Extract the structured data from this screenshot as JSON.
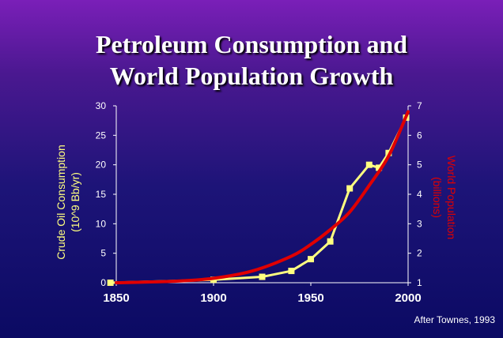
{
  "title_lines": [
    "Petroleum Consumption and",
    "World Population Growth"
  ],
  "credit": "After Townes, 1993",
  "colors": {
    "oil": "#ffff80",
    "population": "#e00000",
    "axis": "#ffffff"
  },
  "chart_data": {
    "type": "line",
    "title": "Petroleum Consumption and World Population Growth",
    "xlim": [
      1850,
      2000
    ],
    "x_ticks": [
      "1850",
      "1900",
      "1950",
      "2000"
    ],
    "y_left": {
      "label": "Crude Oil Consumption\n(10^9 Bb/yr)",
      "lim": [
        0,
        30
      ],
      "ticks": [
        "0",
        "5",
        "10",
        "15",
        "20",
        "25",
        "30"
      ]
    },
    "y_right": {
      "label": "World Population\n(billions)",
      "lim": [
        1,
        7
      ],
      "ticks": [
        "1",
        "2",
        "3",
        "4",
        "5",
        "6",
        "7"
      ]
    },
    "series": [
      {
        "axis": "left",
        "marker": "square",
        "x": [
          1847,
          1900,
          1925,
          1940,
          1950,
          1960,
          1970,
          1980,
          1985,
          1990,
          1999
        ],
        "y": [
          0,
          0.5,
          1,
          2,
          4,
          7,
          16,
          20,
          19.5,
          22,
          28
        ]
      },
      {
        "axis": "right",
        "marker": "none",
        "x": [
          1850,
          1880,
          1900,
          1920,
          1940,
          1950,
          1960,
          1970,
          1980,
          1990,
          2000
        ],
        "y": [
          1.0,
          1.05,
          1.15,
          1.4,
          1.9,
          2.3,
          2.8,
          3.4,
          4.3,
          5.3,
          6.8
        ]
      }
    ]
  }
}
